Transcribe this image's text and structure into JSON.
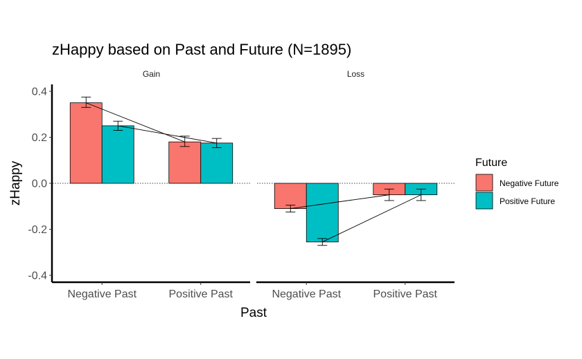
{
  "chart_data": {
    "type": "bar",
    "title": "zHappy based on Past and Future (N=1895)",
    "xlabel": "Past",
    "ylabel": "zHappy",
    "ylim": [
      -0.43,
      0.43
    ],
    "yticks": [
      -0.4,
      -0.2,
      0.0,
      0.2,
      0.4
    ],
    "ytick_labels": [
      "-0.4",
      "-0.2",
      "0.0",
      "0.2",
      "0.4"
    ],
    "categories": [
      "Negative Past",
      "Positive Past"
    ],
    "legend": {
      "title": "Future",
      "position": "right",
      "entries": [
        {
          "name": "Negative Future",
          "color": "#F8766D"
        },
        {
          "name": "Positive Future",
          "color": "#00BFC4"
        }
      ]
    },
    "panels": [
      {
        "name": "Gain",
        "series": [
          {
            "name": "Negative Future",
            "values": [
              0.35,
              0.18
            ],
            "err_low": [
              0.33,
              0.16
            ],
            "err_high": [
              0.375,
              0.205
            ]
          },
          {
            "name": "Positive Future",
            "values": [
              0.25,
              0.175
            ],
            "err_low": [
              0.23,
              0.155
            ],
            "err_high": [
              0.27,
              0.195
            ]
          }
        ]
      },
      {
        "name": "Loss",
        "series": [
          {
            "name": "Negative Future",
            "values": [
              -0.11,
              -0.05
            ],
            "err_low": [
              -0.125,
              -0.075
            ],
            "err_high": [
              -0.095,
              -0.025
            ]
          },
          {
            "name": "Positive Future",
            "values": [
              -0.255,
              -0.05
            ],
            "err_low": [
              -0.27,
              -0.075
            ],
            "err_high": [
              -0.24,
              -0.025
            ]
          }
        ]
      }
    ],
    "reference_line": 0.0
  }
}
